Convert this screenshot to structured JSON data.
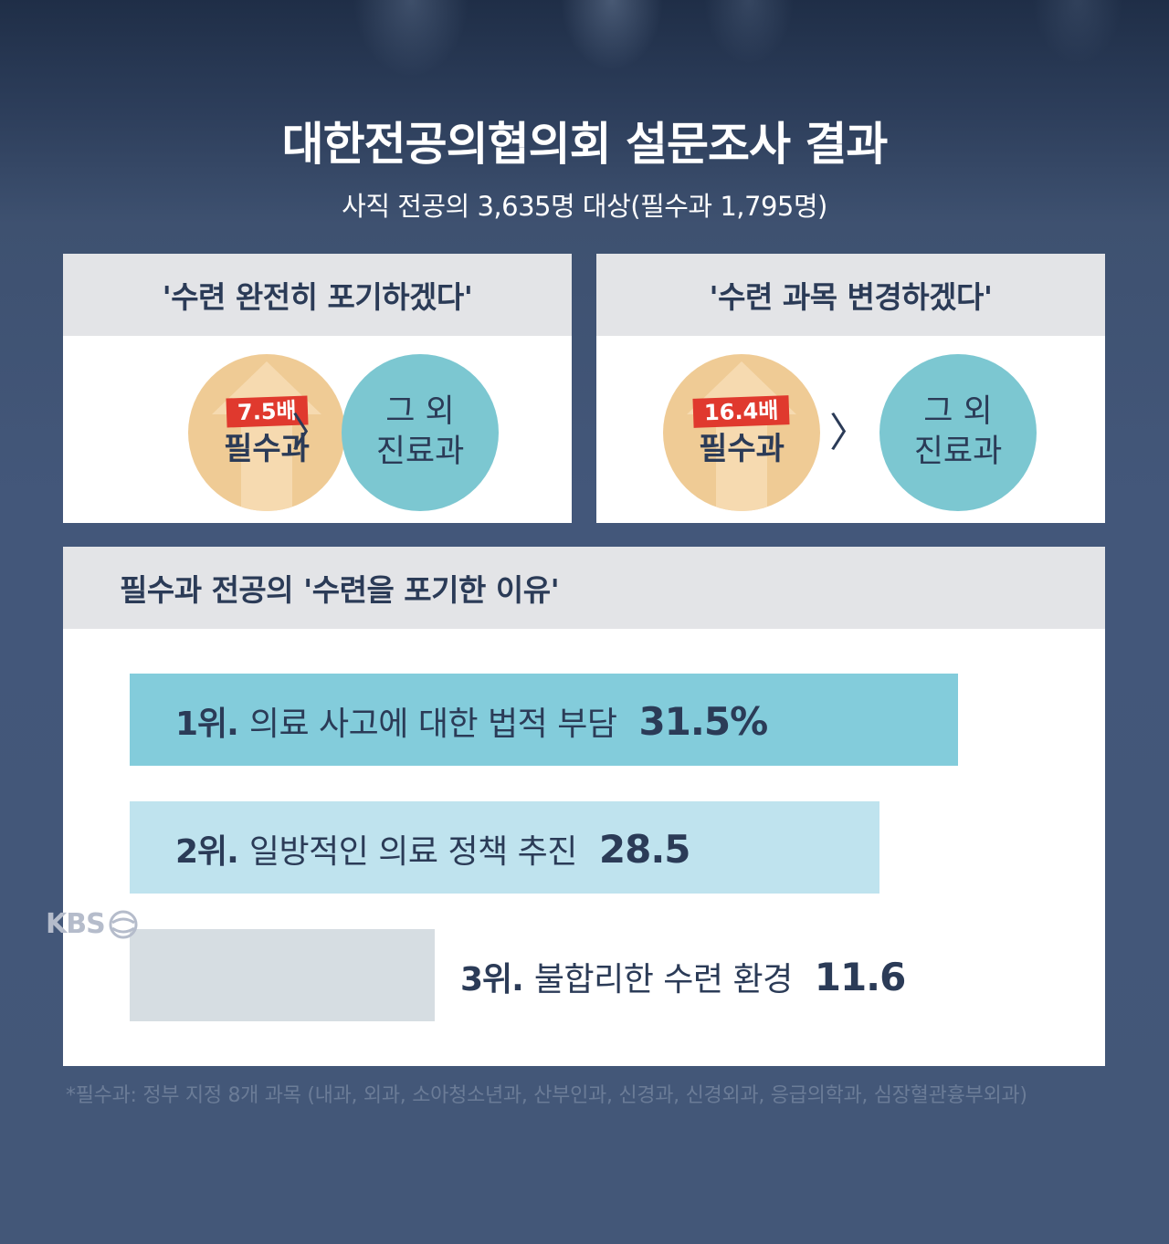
{
  "header": {
    "title": "대한전공의협의회 설문조사 결과",
    "subtitle": "사직 전공의 3,635명 대상(필수과 1,795명)"
  },
  "comparisons": [
    {
      "heading": "'수련 완전히 포기하겠다'",
      "left_badge": "7.5배",
      "left_label": "필수과",
      "operator": "〉",
      "right_line1": "그 외",
      "right_line2": "진료과"
    },
    {
      "heading": "'수련 과목 변경하겠다'",
      "left_badge": "16.4배",
      "left_label": "필수과",
      "operator": "〉",
      "right_line1": "그 외",
      "right_line2": "진료과"
    }
  ],
  "chart_data": {
    "type": "bar",
    "orientation": "horizontal",
    "title": "필수과 전공의 '수련을 포기한 이유'",
    "categories": [
      "1위. 의료 사고에 대한 법적 부담",
      "2위. 일방적인 의료 정책 추진",
      "3위. 불합리한 수련 환경"
    ],
    "ranks": [
      "1위.",
      "2위.",
      "3위."
    ],
    "labels": [
      "의료 사고에 대한 법적 부담",
      "일방적인 의료 정책 추진",
      "불합리한 수련 환경"
    ],
    "value_labels": [
      "31.5%",
      "28.5",
      "11.6"
    ],
    "values": [
      31.5,
      28.5,
      11.6
    ],
    "unit": "%",
    "colors": [
      "#83ccdb",
      "#bfe3ee",
      "#d6dde2"
    ],
    "xlim": [
      0,
      31.5
    ]
  },
  "footnote": "*필수과: 정부 지정 8개 과목 (내과, 외과, 소아청소년과, 산부인과, 신경과, 신경외과, 응급의학과, 심장혈관흉부외과)",
  "logo": {
    "text": "KBS"
  },
  "colors": {
    "accent_red": "#e0392e",
    "orange": "#efcb95",
    "teal": "#7cc7d1",
    "navy_text": "#2b3b57"
  }
}
